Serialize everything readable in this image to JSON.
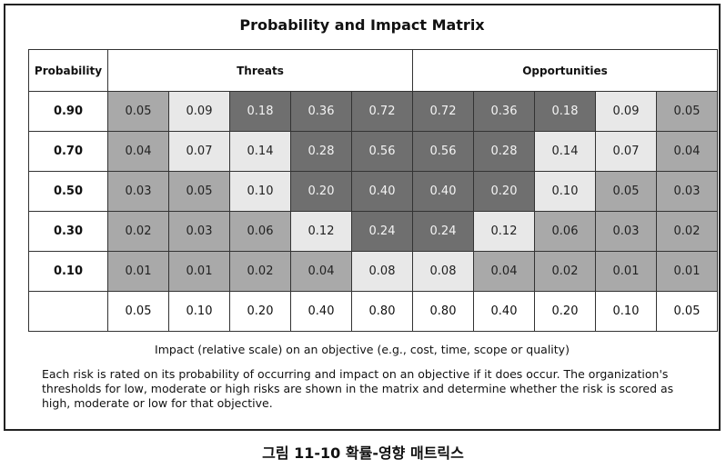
{
  "title": "Probability and Impact Matrix",
  "header": {
    "probability": "Probability",
    "threats": "Threats",
    "opportunities": "Opportunities"
  },
  "rows": [
    {
      "prob": "0.90",
      "cells": [
        "0.05",
        "0.09",
        "0.18",
        "0.36",
        "0.72",
        "0.72",
        "0.36",
        "0.18",
        "0.09",
        "0.05"
      ],
      "levels": [
        "mid",
        "light",
        "dark",
        "dark",
        "dark",
        "dark",
        "dark",
        "dark",
        "light",
        "mid"
      ]
    },
    {
      "prob": "0.70",
      "cells": [
        "0.04",
        "0.07",
        "0.14",
        "0.28",
        "0.56",
        "0.56",
        "0.28",
        "0.14",
        "0.07",
        "0.04"
      ],
      "levels": [
        "mid",
        "light",
        "light",
        "dark",
        "dark",
        "dark",
        "dark",
        "light",
        "light",
        "mid"
      ]
    },
    {
      "prob": "0.50",
      "cells": [
        "0.03",
        "0.05",
        "0.10",
        "0.20",
        "0.40",
        "0.40",
        "0.20",
        "0.10",
        "0.05",
        "0.03"
      ],
      "levels": [
        "mid",
        "mid",
        "light",
        "dark",
        "dark",
        "dark",
        "dark",
        "light",
        "mid",
        "mid"
      ]
    },
    {
      "prob": "0.30",
      "cells": [
        "0.02",
        "0.03",
        "0.06",
        "0.12",
        "0.24",
        "0.24",
        "0.12",
        "0.06",
        "0.03",
        "0.02"
      ],
      "levels": [
        "mid",
        "mid",
        "mid",
        "light",
        "dark",
        "dark",
        "light",
        "mid",
        "mid",
        "mid"
      ]
    },
    {
      "prob": "0.10",
      "cells": [
        "0.01",
        "0.01",
        "0.02",
        "0.04",
        "0.08",
        "0.08",
        "0.04",
        "0.02",
        "0.01",
        "0.01"
      ],
      "levels": [
        "mid",
        "mid",
        "mid",
        "mid",
        "light",
        "light",
        "mid",
        "mid",
        "mid",
        "mid"
      ]
    }
  ],
  "impact_row": [
    "0.05",
    "0.10",
    "0.20",
    "0.40",
    "0.80",
    "0.80",
    "0.40",
    "0.20",
    "0.10",
    "0.05"
  ],
  "axis_label": "Impact (relative scale) on an objective  (e.g., cost, time, scope or quality)",
  "description": "Each risk is rated on its probability of occurring and impact on an objective if it does occur. The organization's thresholds for low, moderate or high risks are shown in the matrix and determine whether the risk is scored as high, moderate or low for that objective.",
  "caption": "그림 11-10 확률-영향 매트릭스",
  "colors": {
    "light": "#e8e8e8",
    "mid": "#a9a9a9",
    "dark": "#6f6f6f"
  }
}
